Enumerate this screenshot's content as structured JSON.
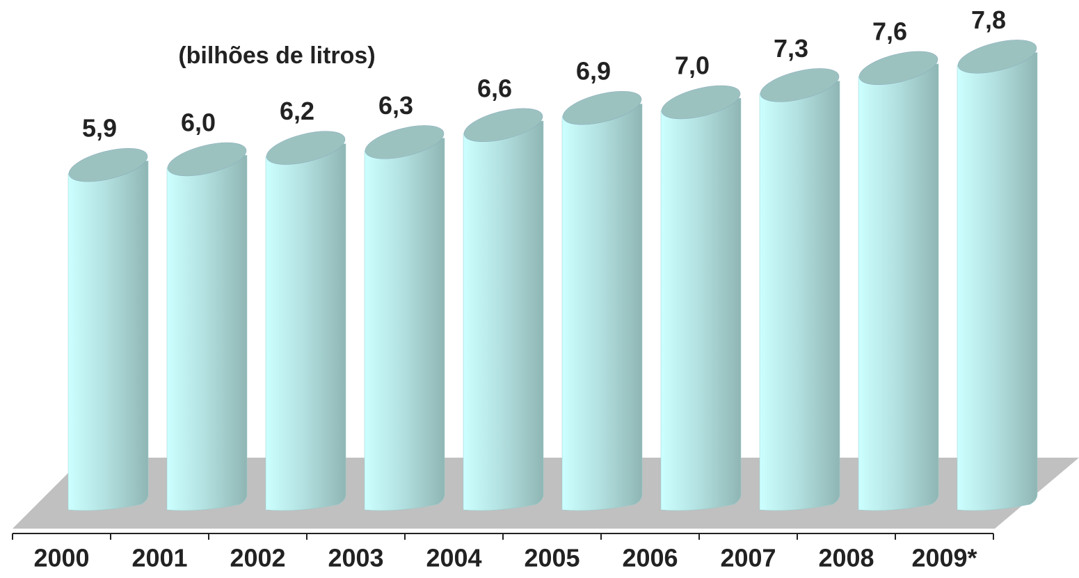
{
  "chart_data": {
    "type": "bar",
    "title": "(bilhões de litros)",
    "categories": [
      "2000",
      "2001",
      "2002",
      "2003",
      "2004",
      "2005",
      "2006",
      "2007",
      "2008",
      "2009*"
    ],
    "values": [
      5.9,
      6.0,
      6.2,
      6.3,
      6.6,
      6.9,
      7.0,
      7.3,
      7.6,
      7.8
    ],
    "value_labels": [
      "5,9",
      "6,0",
      "6,2",
      "6,3",
      "6,6",
      "6,9",
      "7,0",
      "7,3",
      "7,6",
      "7,8"
    ],
    "color": "#ccffff"
  }
}
